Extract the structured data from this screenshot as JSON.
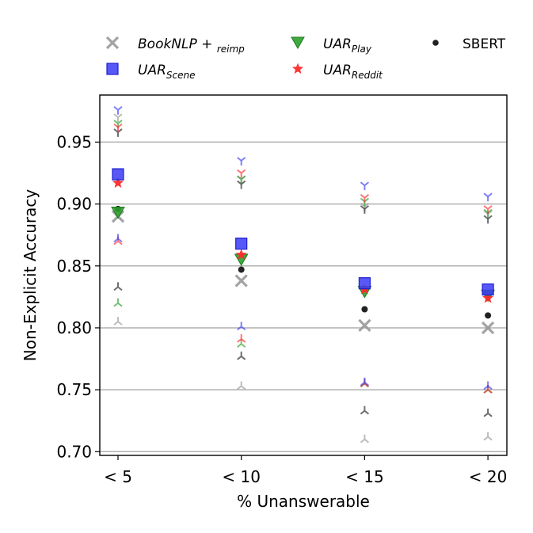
{
  "chart_data": {
    "type": "scatter",
    "title": "",
    "xlabel": "% Unanswerable",
    "ylabel": "Non-Explicit Accuracy",
    "categories": [
      "< 5",
      "< 10",
      "< 15",
      "< 20"
    ],
    "ylim": [
      0.697,
      0.988
    ],
    "yticks": [
      0.7,
      0.75,
      0.8,
      0.85,
      0.9,
      0.95
    ],
    "ytick_labels": [
      "0.70",
      "0.75",
      "0.80",
      "0.85",
      "0.90",
      "0.95"
    ],
    "grid": "horizontal",
    "legend_position": "top",
    "series": [
      {
        "name": "BookNLP+reimp",
        "legend_main": "BookNLP + ",
        "legend_sub": "reimp",
        "marker": "x",
        "color": "#999999",
        "values": [
          0.89,
          0.838,
          0.802,
          0.8
        ],
        "upper": [
          0.97,
          0.92,
          0.898,
          0.892
        ],
        "lower": [
          0.805,
          0.753,
          0.71,
          0.712
        ]
      },
      {
        "name": "UAR_Scene",
        "legend_main": "UAR",
        "legend_sub": "Scene",
        "marker": "square",
        "color": "#3b3bf5",
        "values": [
          0.924,
          0.868,
          0.836,
          0.831
        ],
        "upper": [
          0.976,
          0.935,
          0.915,
          0.906
        ],
        "lower": [
          0.872,
          0.801,
          0.756,
          0.753
        ]
      },
      {
        "name": "UAR_Play",
        "legend_main": "UAR",
        "legend_sub": "Play",
        "marker": "triangle-down",
        "color": "#2ca02c",
        "values": [
          0.893,
          0.855,
          0.829,
          0.826
        ],
        "upper": [
          0.965,
          0.92,
          0.902,
          0.893
        ],
        "lower": [
          0.82,
          0.787,
          0.755,
          0.75
        ]
      },
      {
        "name": "UAR_Reddit",
        "legend_main": "UAR",
        "legend_sub": "Reddit",
        "marker": "star",
        "color": "#ff2a2a",
        "values": [
          0.917,
          0.859,
          0.831,
          0.824
        ],
        "upper": [
          0.962,
          0.925,
          0.905,
          0.896
        ],
        "lower": [
          0.87,
          0.791,
          0.755,
          0.75
        ]
      },
      {
        "name": "SBERT",
        "legend_main": "SBERT",
        "legend_sub": "",
        "marker": "dot",
        "color": "#222222",
        "values": [
          0.896,
          0.847,
          0.815,
          0.81
        ],
        "upper": [
          0.958,
          0.916,
          0.896,
          0.888
        ],
        "lower": [
          0.833,
          0.777,
          0.733,
          0.731
        ]
      }
    ]
  }
}
